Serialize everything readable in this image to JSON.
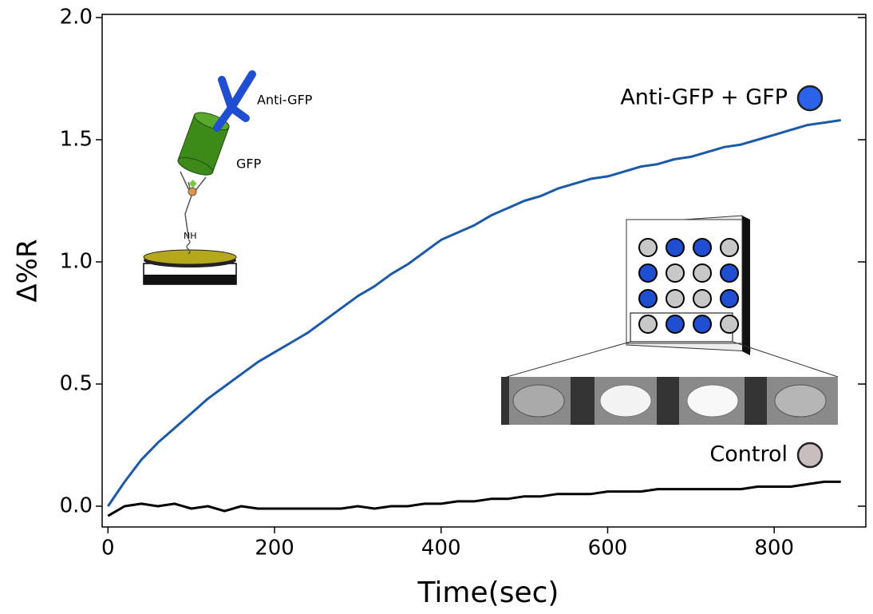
{
  "chart_data": {
    "type": "line",
    "xlabel": "Time(sec)",
    "ylabel": "Δ%R",
    "x": [
      0,
      20,
      40,
      60,
      80,
      100,
      120,
      140,
      160,
      180,
      200,
      220,
      240,
      260,
      280,
      300,
      320,
      340,
      360,
      380,
      400,
      420,
      440,
      460,
      480,
      500,
      520,
      540,
      560,
      580,
      600,
      620,
      640,
      660,
      680,
      700,
      720,
      740,
      760,
      780,
      800,
      820,
      840,
      860,
      880
    ],
    "series": [
      {
        "name": "Anti-GFP + GFP",
        "color": "#1a5aa8",
        "legend_marker_color": "#2a62ea",
        "values": [
          0,
          0.1,
          0.19,
          0.26,
          0.32,
          0.38,
          0.44,
          0.49,
          0.54,
          0.59,
          0.63,
          0.67,
          0.71,
          0.76,
          0.81,
          0.86,
          0.9,
          0.95,
          0.99,
          1.04,
          1.09,
          1.12,
          1.15,
          1.19,
          1.22,
          1.25,
          1.27,
          1.3,
          1.32,
          1.34,
          1.35,
          1.37,
          1.39,
          1.4,
          1.42,
          1.43,
          1.45,
          1.47,
          1.48,
          1.5,
          1.52,
          1.54,
          1.56,
          1.57,
          1.58
        ]
      },
      {
        "name": "Control",
        "color": "#000000",
        "legend_marker_color": "#c9bdbd",
        "values": [
          -0.04,
          0.0,
          0.01,
          0.0,
          0.01,
          -0.01,
          0.0,
          -0.02,
          0.0,
          -0.01,
          -0.01,
          -0.01,
          -0.01,
          -0.01,
          -0.01,
          0.0,
          -0.01,
          0.0,
          0.0,
          0.01,
          0.01,
          0.02,
          0.02,
          0.03,
          0.03,
          0.04,
          0.04,
          0.05,
          0.05,
          0.05,
          0.06,
          0.06,
          0.06,
          0.07,
          0.07,
          0.07,
          0.07,
          0.07,
          0.07,
          0.08,
          0.08,
          0.08,
          0.09,
          0.1,
          0.1
        ]
      }
    ],
    "xlim": [
      -7,
      910
    ],
    "ylim": [
      -0.085,
      2.013
    ],
    "xticks": [
      0,
      200,
      400,
      600,
      800
    ],
    "yticks": [
      {
        "value": 0,
        "label": "0.0"
      },
      {
        "value": 0.5,
        "label": "0.5"
      },
      {
        "value": 1,
        "label": "1.0"
      },
      {
        "value": 1.5,
        "label": "1.5"
      },
      {
        "value": 2,
        "label": "2.0"
      }
    ],
    "diagram_labels": [
      "Anti-GFP",
      "GFP",
      "NH"
    ]
  }
}
